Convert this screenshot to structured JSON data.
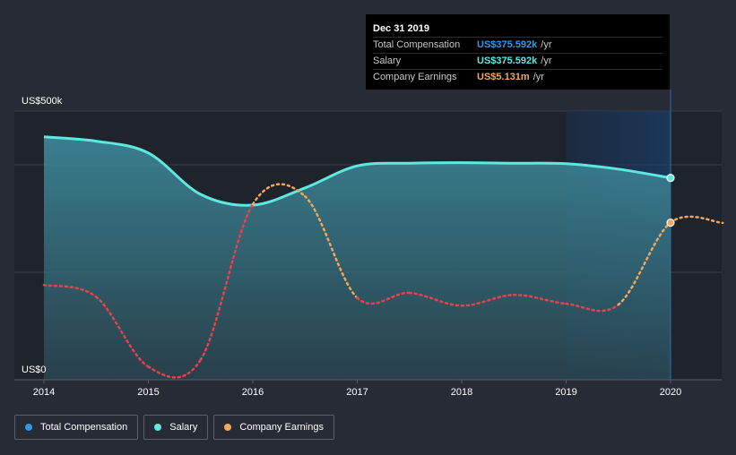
{
  "chart_data": {
    "type": "area",
    "x_ticks": [
      "2014",
      "2015",
      "2016",
      "2017",
      "2018",
      "2019",
      "2020"
    ],
    "y_ticks": [
      {
        "value": 0,
        "label": "US$0"
      },
      {
        "value": 500,
        "label": "US$500k"
      }
    ],
    "y_unit": "US$ thousands (compensation); earnings shown on secondary scale",
    "ylim": [
      0,
      500
    ],
    "highlight_range": [
      2019,
      2020
    ],
    "series": [
      {
        "name": "Total Compensation",
        "color": "#2d9be0",
        "style": "area",
        "x": [
          2014,
          2014.5,
          2015,
          2015.5,
          2016,
          2016.5,
          2017,
          2017.5,
          2018,
          2018.5,
          2019,
          2019.5,
          2020
        ],
        "values": [
          452,
          444,
          422,
          345,
          325,
          357,
          398,
          403,
          404,
          403,
          402,
          392,
          375.592
        ]
      },
      {
        "name": "Salary",
        "color": "#5ee8e0",
        "style": "line",
        "x": [
          2014,
          2014.5,
          2015,
          2015.5,
          2016,
          2016.5,
          2017,
          2017.5,
          2018,
          2018.5,
          2019,
          2019.5,
          2020
        ],
        "values": [
          452,
          444,
          422,
          345,
          325,
          357,
          398,
          403,
          404,
          403,
          402,
          392,
          375.592
        ]
      },
      {
        "name": "Company Earnings",
        "color_pos": "#f2a85a",
        "color_neg": "#e8424b",
        "style": "dotted",
        "note": "values in US$m, secondary scale; red segments below zero",
        "x": [
          2014,
          2014.5,
          2015,
          2015.5,
          2016,
          2016.5,
          2017,
          2017.5,
          2018,
          2018.5,
          2019,
          2019.5,
          2020,
          2020.5
        ],
        "values": [
          -1.2,
          -2.4,
          -9.5,
          -8.8,
          7.0,
          7.8,
          -2.5,
          -2.0,
          -3.3,
          -2.2,
          -3.1,
          -3.2,
          5.131,
          5.1
        ]
      }
    ]
  },
  "tooltip": {
    "date": "Dec 31 2019",
    "rows": [
      {
        "label": "Total Compensation",
        "value": "US$375.592k",
        "unit": "/yr",
        "color": "#2d9be0"
      },
      {
        "label": "Salary",
        "value": "US$375.592k",
        "unit": "/yr",
        "color": "#5ee8e0"
      },
      {
        "label": "Company Earnings",
        "value": "US$5.131m",
        "unit": "/yr",
        "color": "#f2a85a"
      }
    ]
  },
  "legend": [
    {
      "label": "Total Compensation",
      "color": "#2d9be0"
    },
    {
      "label": "Salary",
      "color": "#5ee8e0"
    },
    {
      "label": "Company Earnings",
      "color": "#f2a85a"
    }
  ]
}
